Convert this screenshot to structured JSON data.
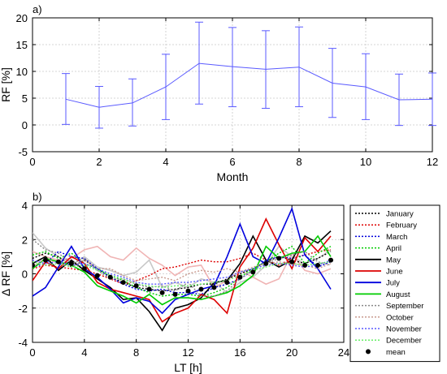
{
  "chart_data": [
    {
      "type": "line",
      "panel_label": "a)",
      "xlabel": "Month",
      "ylabel": "RF [%]",
      "xlim": [
        0,
        12
      ],
      "ylim": [
        -5,
        20
      ],
      "xticks": [
        0,
        2,
        4,
        6,
        8,
        10,
        12
      ],
      "yticks": [
        -5,
        0,
        5,
        10,
        15,
        20
      ],
      "grid": true,
      "series": [
        {
          "color": "#5a5aff",
          "error_bars": true,
          "x": [
            1,
            2,
            3,
            4,
            5,
            6,
            7,
            8,
            9,
            10,
            11,
            12
          ],
          "y": [
            4.8,
            3.3,
            4.1,
            7.1,
            11.5,
            10.9,
            10.4,
            10.8,
            7.8,
            7.1,
            4.7,
            4.8
          ],
          "lower": [
            0.1,
            -0.6,
            -0.2,
            1.0,
            3.9,
            3.4,
            3.1,
            3.4,
            1.4,
            1.0,
            -0.1,
            -0.1
          ],
          "upper": [
            9.6,
            7.2,
            8.6,
            13.2,
            19.2,
            18.2,
            17.6,
            18.3,
            14.3,
            13.3,
            9.5,
            9.7
          ]
        }
      ]
    },
    {
      "type": "line",
      "panel_label": "b)",
      "xlabel": "LT [h]",
      "ylabel": "Δ RF [%]",
      "xlim": [
        0,
        24
      ],
      "ylim": [
        -4,
        4
      ],
      "xticks": [
        0,
        4,
        8,
        12,
        16,
        20,
        24
      ],
      "yticks": [
        -4,
        -2,
        0,
        2,
        4
      ],
      "grid": true,
      "legend_position": "right",
      "x": [
        0,
        1,
        2,
        3,
        4,
        5,
        6,
        7,
        8,
        9,
        10,
        11,
        12,
        13,
        14,
        15,
        16,
        17,
        18,
        19,
        20,
        21,
        22,
        23
      ],
      "series": [
        {
          "name": "January",
          "color": "#000000",
          "dash": "dotted",
          "values": [
            0.9,
            1.2,
            1.0,
            0.4,
            0.8,
            0.3,
            -0.2,
            -0.5,
            -0.8,
            -0.9,
            -1.0,
            -0.9,
            -0.8,
            -0.6,
            -0.6,
            -0.3,
            0.0,
            0.3,
            0.7,
            1.0,
            0.8,
            0.6,
            0.9,
            1.3
          ]
        },
        {
          "name": "February",
          "color": "#dd0000",
          "dash": "dotted",
          "values": [
            0.3,
            0.5,
            0.4,
            0.3,
            0.2,
            0.0,
            -0.3,
            -0.6,
            -0.4,
            -0.1,
            0.3,
            0.4,
            0.6,
            0.8,
            0.7,
            0.7,
            0.9,
            1.2,
            0.8,
            0.5,
            0.9,
            1.1,
            1.3,
            1.4
          ]
        },
        {
          "name": "March",
          "color": "#0000dd",
          "dash": "dotted",
          "values": [
            0.4,
            0.6,
            1.3,
            1.0,
            0.9,
            0.3,
            -0.2,
            -0.6,
            -0.9,
            -1.0,
            -0.9,
            -1.1,
            -1.1,
            -1.2,
            -0.8,
            -0.6,
            -0.3,
            0.2,
            0.8,
            1.0,
            0.9,
            1.1,
            0.4,
            0.7
          ]
        },
        {
          "name": "April",
          "color": "#00cc00",
          "dash": "dotted",
          "values": [
            1.1,
            1.3,
            0.9,
            1.2,
            0.6,
            0.3,
            -0.1,
            -0.4,
            -0.8,
            -1.1,
            -1.3,
            -1.2,
            -1.2,
            -1.3,
            -1.1,
            -0.8,
            -0.2,
            0.3,
            0.7,
            1.2,
            1.6,
            0.6,
            1.2,
            1.6
          ]
        },
        {
          "name": "May",
          "color": "#000000",
          "dash": "solid",
          "values": [
            0.6,
            1.0,
            0.2,
            0.8,
            0.2,
            -0.3,
            -0.8,
            -1.5,
            -1.4,
            -2.2,
            -3.3,
            -2.0,
            -1.8,
            -1.4,
            -0.5,
            -0.4,
            0.6,
            2.2,
            0.8,
            0.4,
            0.8,
            2.2,
            1.8,
            2.5
          ]
        },
        {
          "name": "June",
          "color": "#dd0000",
          "dash": "solid",
          "values": [
            -0.4,
            0.7,
            0.3,
            1.0,
            0.6,
            -0.5,
            -0.9,
            -1.1,
            -1.3,
            -1.5,
            -2.8,
            -2.3,
            -2.0,
            -1.2,
            -1.5,
            -2.3,
            0.4,
            1.5,
            3.2,
            1.7,
            0.3,
            2.1,
            1.3,
            2.2
          ]
        },
        {
          "name": "July",
          "color": "#0000dd",
          "dash": "solid",
          "values": [
            -1.3,
            -0.8,
            0.4,
            1.6,
            0.3,
            -0.2,
            -0.9,
            -1.7,
            -1.4,
            -1.6,
            -2.3,
            -1.5,
            -1.2,
            -0.9,
            -0.7,
            1.0,
            2.9,
            1.0,
            0.6,
            2.1,
            3.8,
            1.1,
            0.3,
            -0.9
          ]
        },
        {
          "name": "August",
          "color": "#00cc00",
          "dash": "solid",
          "values": [
            0.3,
            0.9,
            0.7,
            0.5,
            0.1,
            -0.7,
            -1.0,
            -1.3,
            -1.7,
            -1.2,
            -1.8,
            -1.4,
            -1.4,
            -1.5,
            -1.3,
            -1.1,
            -0.7,
            -0.1,
            1.6,
            0.9,
            1.2,
            1.3,
            2.2,
            1.0
          ]
        },
        {
          "name": "September",
          "color": "#888888",
          "dash": "dotted",
          "values": [
            2.0,
            1.4,
            1.2,
            0.6,
            0.9,
            0.2,
            -0.3,
            -0.3,
            -0.6,
            -0.8,
            -0.7,
            -1.0,
            -0.5,
            -1.3,
            -1.3,
            -1.0,
            -0.3,
            0.2,
            0.6,
            0.9,
            1.1,
            1.3,
            0.7,
            0.5
          ]
        },
        {
          "name": "October",
          "color": "#c89a8e",
          "dash": "dotted",
          "values": [
            0.4,
            0.9,
            0.6,
            0.4,
            0.8,
            0.3,
            0.3,
            -0.1,
            -0.4,
            -0.3,
            -0.2,
            -0.4,
            0.0,
            0.2,
            0.1,
            0.3,
            0.1,
            0.4,
            0.6,
            0.7,
            0.6,
            0.5,
            0.3,
            0.6
          ]
        },
        {
          "name": "November",
          "color": "#5a5aff",
          "dash": "dotted",
          "values": [
            0.8,
            0.6,
            0.7,
            0.5,
            0.6,
            0.3,
            0.0,
            -0.2,
            -0.5,
            -0.6,
            -0.6,
            -0.5,
            -0.5,
            -0.4,
            -0.3,
            -0.2,
            0.1,
            0.3,
            0.5,
            0.6,
            0.5,
            0.4,
            0.5,
            0.8
          ]
        },
        {
          "name": "December",
          "color": "#66ee66",
          "dash": "dotted",
          "values": [
            0.7,
            0.5,
            0.6,
            0.4,
            0.5,
            0.2,
            -0.1,
            -0.3,
            -0.6,
            -0.7,
            -0.8,
            -0.7,
            -0.7,
            -0.6,
            -0.5,
            -0.4,
            -0.1,
            0.2,
            0.4,
            0.6,
            0.6,
            0.5,
            0.6,
            0.7
          ]
        },
        {
          "name": "mean",
          "color": "#000000",
          "marker": "dot",
          "values": [
            0.5,
            0.8,
            0.7,
            0.6,
            0.3,
            -0.1,
            -0.2,
            -0.5,
            -0.7,
            -0.9,
            -1.1,
            -1.2,
            -1.0,
            -0.9,
            -0.8,
            -0.5,
            -0.2,
            0.1,
            0.6,
            0.9,
            0.7,
            0.5,
            0.5,
            0.8
          ]
        },
        {
          "name": "",
          "color": "#c8c8c8",
          "dash": "solid",
          "values": [
            2.4,
            1.5,
            1.0,
            0.5,
            1.0,
            0.4,
            0.2,
            -0.1,
            0.1,
            0.8,
            -0.8,
            -0.5,
            -0.8,
            -0.3,
            -0.5,
            -1.1,
            -0.5,
            -0.2,
            0.5,
            1.6,
            1.0,
            0.6,
            0.9,
            1.4
          ]
        },
        {
          "name": "",
          "color": "#f0b4b4",
          "dash": "solid",
          "values": [
            1.3,
            1.0,
            0.8,
            0.9,
            1.4,
            1.6,
            1.0,
            0.8,
            1.5,
            0.9,
            0.5,
            -0.1,
            0.4,
            0.5,
            -0.8,
            -0.4,
            0.2,
            -0.2,
            -0.6,
            -0.3,
            1.2,
            0.2,
            0.0,
            0.3
          ]
        }
      ]
    }
  ]
}
